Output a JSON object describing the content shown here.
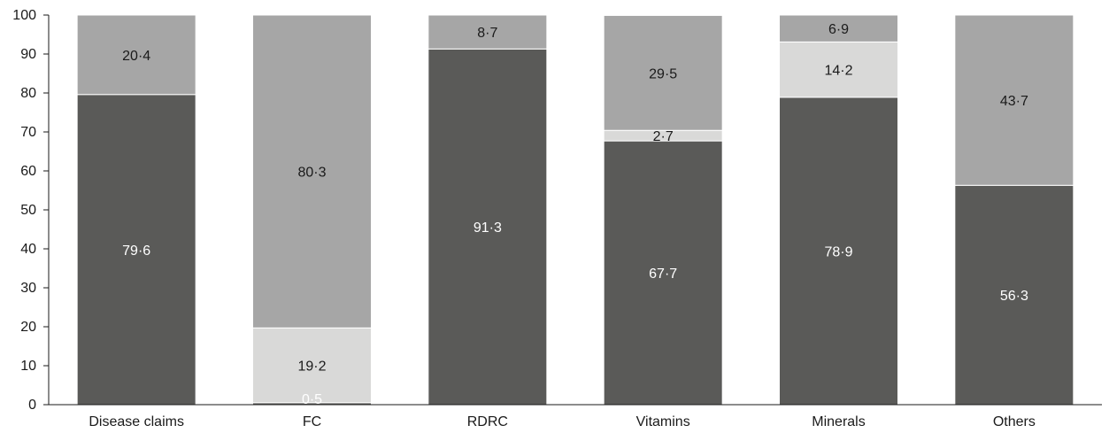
{
  "chart_data": {
    "type": "bar",
    "stacked": true,
    "categories": [
      "Disease claims",
      "FC",
      "RDRC",
      "Vitamins",
      "Minerals",
      "Others"
    ],
    "series": [
      {
        "values": [
          79.6,
          0.5,
          91.3,
          67.7,
          78.9,
          56.3
        ],
        "labels": [
          "79·6",
          "0·5",
          "91·3",
          "67·7",
          "78·9",
          "56·3"
        ]
      },
      {
        "values": [
          0,
          19.2,
          0,
          2.7,
          14.2,
          0
        ],
        "labels": [
          "",
          "19·2",
          "",
          "2·7",
          "14·2",
          ""
        ]
      },
      {
        "values": [
          20.4,
          80.3,
          8.7,
          29.5,
          6.9,
          43.7
        ],
        "labels": [
          "20·4",
          "80·3",
          "8·7",
          "29·5",
          "6·9",
          "43·7"
        ]
      }
    ],
    "series_colors": [
      "#5a5a58",
      "#d9d9d8",
      "#a6a6a6"
    ],
    "label_colors": [
      "#ffffff",
      "#1a1a1a",
      "#1a1a1a"
    ],
    "yticks": [
      "0",
      "10",
      "20",
      "30",
      "40",
      "50",
      "60",
      "70",
      "80",
      "90",
      "100"
    ],
    "ylim": [
      0,
      100
    ],
    "xlabel": "",
    "ylabel": "",
    "title": "",
    "grid": false,
    "legend": "none"
  }
}
